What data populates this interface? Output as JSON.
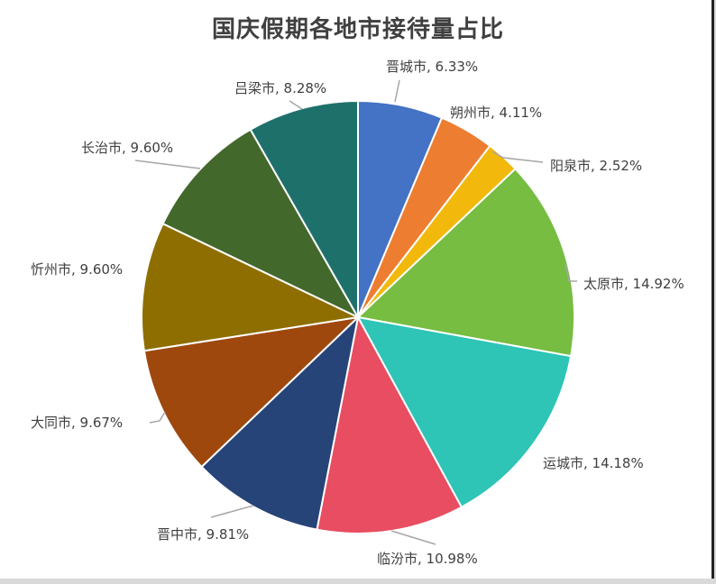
{
  "chart_data": {
    "type": "pie",
    "title": "国庆假期各地市接待量占比",
    "categories": [
      "晋城市",
      "朔州市",
      "阳泉市",
      "太原市",
      "运城市",
      "临汾市",
      "晋中市",
      "大同市",
      "忻州市",
      "长治市",
      "吕梁市"
    ],
    "values": [
      6.33,
      4.11,
      2.52,
      14.92,
      14.18,
      10.98,
      9.81,
      9.67,
      9.6,
      9.6,
      8.28
    ],
    "unit": "%",
    "colors": [
      "#4472c4",
      "#ed7d31",
      "#f2b90c",
      "#76bd42",
      "#2ec4b6",
      "#e84d61",
      "#264478",
      "#9e480e",
      "#8f6e00",
      "#43682b",
      "#1e716b"
    ],
    "labels": [
      "晋城市, 6.33%",
      "朔州市, 4.11%",
      "阳泉市, 2.52%",
      "太原市, 14.92%",
      "运城市, 14.18%",
      "临汾市, 10.98%",
      "晋中市, 9.81%",
      "大同市, 9.67%",
      "忻州市, 9.60%",
      "长治市, 9.60%",
      "吕梁市, 8.28%"
    ],
    "legend": "none",
    "start_angle_deg": 0,
    "direction": "clockwise"
  }
}
